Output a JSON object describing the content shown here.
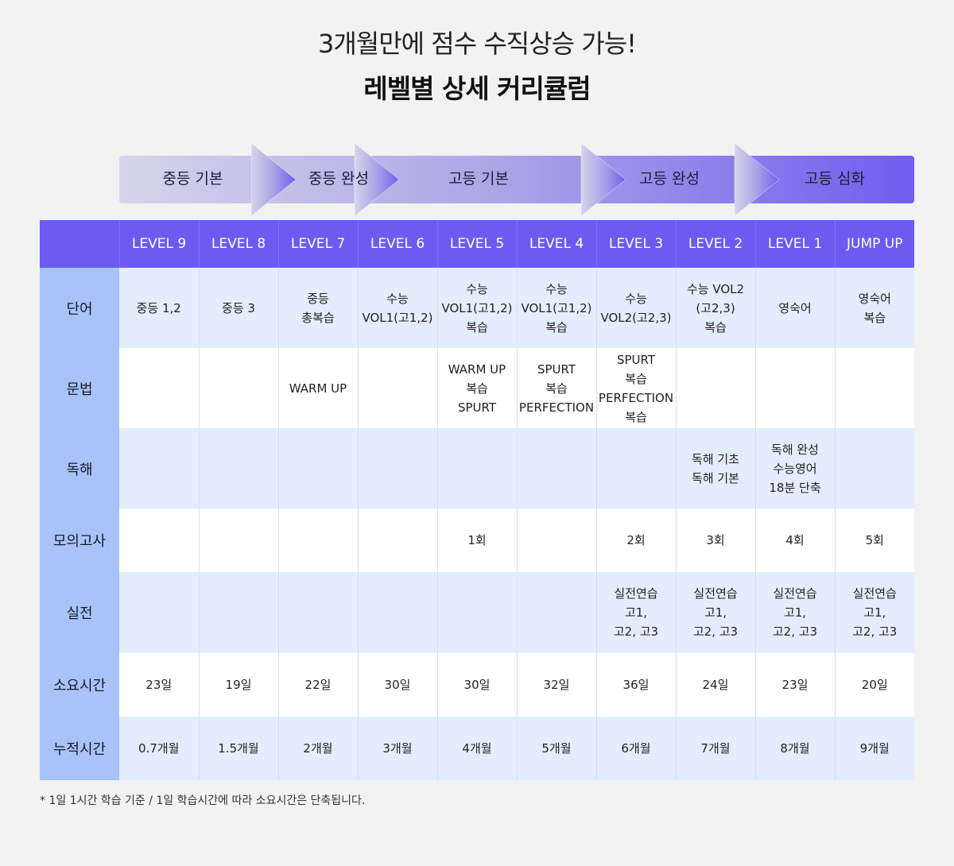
{
  "header": {
    "subtitle": "3개월만에 점수 수직상승 가능!",
    "title": "레벨별 상세 커리큘럼"
  },
  "stages": [
    "중등 기본",
    "중등 완성",
    "고등 기본",
    "고등 완성",
    "고등 심화"
  ],
  "colors": {
    "header_bg": "#6a5cf0",
    "row_header_bg": "#a8c3f7",
    "row_alt_bg": "#e4edfd",
    "stage_start": "#d6d4ea",
    "stage_end": "#6f5ef0"
  },
  "table": {
    "levels": [
      "LEVEL 9",
      "LEVEL 8",
      "LEVEL 7",
      "LEVEL 6",
      "LEVEL 5",
      "LEVEL 4",
      "LEVEL 3",
      "LEVEL 2",
      "LEVEL 1",
      "JUMP UP"
    ],
    "rows": [
      {
        "label": "단어",
        "cells": [
          [
            "중등 1,2"
          ],
          [
            "중등 3"
          ],
          [
            "중등",
            "총복습"
          ],
          [
            "수능",
            "VOL1(고1,2)"
          ],
          [
            "수능",
            "VOL1(고1,2)",
            "복습"
          ],
          [
            "수능",
            "VOL1(고1,2)",
            "복습"
          ],
          [
            "수능",
            "VOL2(고2,3)"
          ],
          [
            "수능 VOL2",
            "(고2,3)",
            "복습"
          ],
          [
            "영숙어"
          ],
          [
            "영숙어",
            "복습"
          ]
        ]
      },
      {
        "label": "문법",
        "cells": [
          [],
          [],
          [
            "WARM UP"
          ],
          [],
          [
            "WARM UP",
            "복습",
            "SPURT"
          ],
          [
            "SPURT",
            "복습",
            "PERFECTION"
          ],
          [
            "SPURT",
            "복습",
            "PERFECTION",
            "복습"
          ],
          [],
          [],
          []
        ]
      },
      {
        "label": "독해",
        "cells": [
          [],
          [],
          [],
          [],
          [],
          [],
          [],
          [
            "독해 기초",
            "독해 기본"
          ],
          [
            "독해 완성",
            "수능영어",
            "18분 단축"
          ],
          []
        ]
      },
      {
        "label": "모의고사",
        "cells": [
          [],
          [],
          [],
          [],
          [
            "1회"
          ],
          [],
          [
            "2회"
          ],
          [
            "3회"
          ],
          [
            "4회"
          ],
          [
            "5회"
          ]
        ]
      },
      {
        "label": "실전",
        "cells": [
          [],
          [],
          [],
          [],
          [],
          [],
          [
            "실전연습",
            "고1,",
            "고2, 고3"
          ],
          [
            "실전연습",
            "고1,",
            "고2, 고3"
          ],
          [
            "실전연습",
            "고1,",
            "고2, 고3"
          ],
          [
            "실전연습",
            "고1,",
            "고2, 고3"
          ]
        ]
      },
      {
        "label": "소요시간",
        "cells": [
          [
            "23일"
          ],
          [
            "19일"
          ],
          [
            "22일"
          ],
          [
            "30일"
          ],
          [
            "30일"
          ],
          [
            "32일"
          ],
          [
            "36일"
          ],
          [
            "24일"
          ],
          [
            "23일"
          ],
          [
            "20일"
          ]
        ]
      },
      {
        "label": "누적시간",
        "cells": [
          [
            "0.7개월"
          ],
          [
            "1.5개월"
          ],
          [
            "2개월"
          ],
          [
            "3개월"
          ],
          [
            "4개월"
          ],
          [
            "5개월"
          ],
          [
            "6개월"
          ],
          [
            "7개월"
          ],
          [
            "8개월"
          ],
          [
            "9개월"
          ]
        ]
      }
    ]
  },
  "footnote": "* 1일 1시간 학습 기준 / 1일 학습시간에 따라 소요시간은 단축됩니다."
}
